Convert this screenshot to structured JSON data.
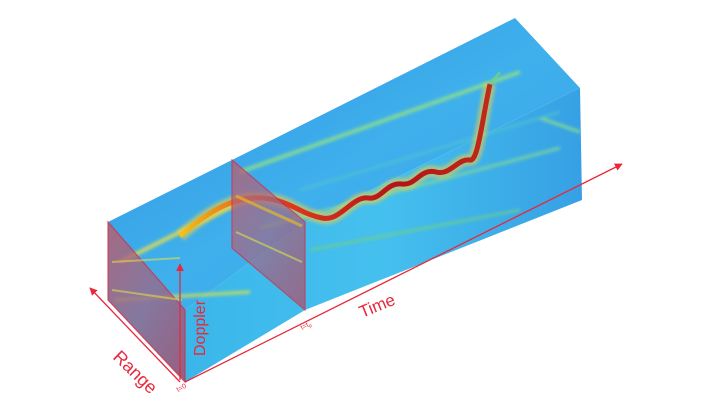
{
  "labels": {
    "range": "Range",
    "doppler": "Doppler",
    "time": "Time",
    "t_zero": "t=0",
    "t_p": "t=t"
  },
  "colors": {
    "axis": "#e8283c",
    "frame": "#d9263f",
    "background_field": "#38a8e8",
    "trace_hot": "#b5121b",
    "trace_warm": "#f2c21a",
    "trace_cool": "#6fd08a"
  }
}
